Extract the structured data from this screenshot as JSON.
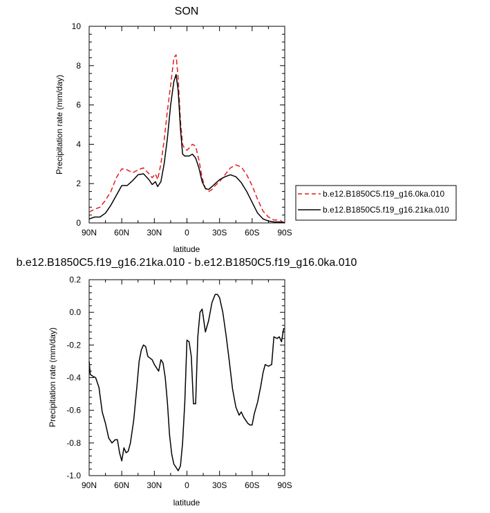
{
  "chart_data": [
    {
      "type": "line",
      "title": "SON",
      "xlabel": "latitude",
      "ylabel": "Precipitation rate (mm/day)",
      "xlim": [
        90,
        -90
      ],
      "ylim": [
        0,
        10
      ],
      "xticks": [
        90,
        60,
        30,
        0,
        -30,
        -60,
        -90
      ],
      "xtick_labels": [
        "90N",
        "60N",
        "30N",
        "0",
        "30S",
        "60S",
        "90S"
      ],
      "yticks": [
        0,
        2,
        4,
        6,
        8,
        10
      ],
      "ytick_labels": [
        "0",
        "2",
        "4",
        "6",
        "8",
        "10"
      ],
      "legend_position": "right",
      "series": [
        {
          "name": "b.e12.B1850C5.f19_g16.0ka.010",
          "color": "#e31a1c",
          "style": "dashed",
          "x": [
            90,
            85,
            80,
            75,
            70,
            65,
            60,
            55,
            50,
            45,
            40,
            35,
            32,
            29,
            27,
            24,
            21,
            18,
            15,
            12,
            10,
            8,
            6,
            4,
            2,
            0,
            -2,
            -5,
            -8,
            -11,
            -14,
            -17,
            -20,
            -23,
            -26,
            -30,
            -35,
            -40,
            -45,
            -50,
            -55,
            -60,
            -65,
            -70,
            -75,
            -80,
            -85,
            -90
          ],
          "y": [
            0.55,
            0.7,
            0.8,
            1.15,
            1.6,
            2.3,
            2.75,
            2.7,
            2.55,
            2.7,
            2.8,
            2.5,
            2.3,
            2.5,
            2.2,
            3.0,
            4.2,
            5.7,
            7.0,
            8.4,
            8.55,
            7.3,
            5.2,
            4.0,
            3.75,
            3.7,
            3.8,
            4.0,
            3.9,
            3.2,
            2.3,
            1.75,
            1.6,
            1.7,
            1.9,
            2.1,
            2.45,
            2.8,
            2.95,
            2.85,
            2.45,
            1.9,
            1.2,
            0.6,
            0.3,
            0.15,
            0.15,
            0.0
          ]
        },
        {
          "name": "b.e12.B1850C5.f19_g16.21ka.010",
          "color": "#000000",
          "style": "solid",
          "x": [
            90,
            85,
            80,
            75,
            70,
            65,
            60,
            55,
            50,
            45,
            40,
            35,
            32,
            29,
            27,
            24,
            21,
            18,
            15,
            12,
            10,
            8,
            6,
            4,
            2,
            0,
            -2,
            -5,
            -8,
            -11,
            -14,
            -17,
            -20,
            -23,
            -26,
            -30,
            -35,
            -40,
            -45,
            -50,
            -55,
            -60,
            -65,
            -70,
            -75,
            -80,
            -85,
            -90
          ],
          "y": [
            0.2,
            0.3,
            0.3,
            0.5,
            0.9,
            1.4,
            1.9,
            1.9,
            2.15,
            2.45,
            2.5,
            2.2,
            1.95,
            2.1,
            1.85,
            2.1,
            3.0,
            4.3,
            6.0,
            7.2,
            7.55,
            6.7,
            4.8,
            3.5,
            3.4,
            3.4,
            3.4,
            3.5,
            3.3,
            2.8,
            2.1,
            1.75,
            1.7,
            1.85,
            2.0,
            2.2,
            2.35,
            2.45,
            2.35,
            2.05,
            1.6,
            1.05,
            0.5,
            0.2,
            0.1,
            0.05,
            0.05,
            0.0
          ]
        }
      ]
    },
    {
      "type": "line",
      "title": "b.e12.B1850C5.f19_g16.21ka.010 - b.e12.B1850C5.f19_g16.0ka.010",
      "xlabel": "latitude",
      "ylabel": "Precipitation rate (mm/day)",
      "xlim": [
        90,
        -90
      ],
      "ylim": [
        -1.0,
        0.2
      ],
      "xticks": [
        90,
        60,
        30,
        0,
        -30,
        -60,
        -90
      ],
      "xtick_labels": [
        "90N",
        "60N",
        "30N",
        "0",
        "30S",
        "60S",
        "90S"
      ],
      "yticks": [
        -1.0,
        -0.8,
        -0.6,
        -0.4,
        -0.2,
        0.0,
        0.2
      ],
      "ytick_labels": [
        "-1.0",
        "-0.8",
        "-0.6",
        "-0.4",
        "-0.2",
        "0.0",
        "0.2"
      ],
      "series": [
        {
          "name": "",
          "color": "#000000",
          "style": "solid",
          "x": [
            90,
            89,
            87,
            84,
            81,
            78,
            75,
            72,
            69,
            66,
            64,
            62,
            60,
            58,
            56,
            54,
            52,
            49,
            46,
            44,
            42,
            40,
            38,
            36,
            34,
            32,
            30,
            28,
            26,
            24,
            22,
            20,
            18,
            16,
            14,
            12,
            10,
            8,
            6,
            4,
            2,
            0,
            -2,
            -4,
            -6,
            -8,
            -10,
            -12,
            -14,
            -17,
            -20,
            -23,
            -26,
            -28,
            -30,
            -33,
            -36,
            -39,
            -42,
            -45,
            -48,
            -50,
            -52,
            -54,
            -56,
            -58,
            -60,
            -62,
            -65,
            -68,
            -70,
            -72,
            -75,
            -78,
            -80,
            -83,
            -85,
            -87,
            -89,
            -90
          ],
          "y": [
            -0.3,
            -0.38,
            -0.39,
            -0.4,
            -0.46,
            -0.61,
            -0.68,
            -0.77,
            -0.8,
            -0.78,
            -0.78,
            -0.86,
            -0.91,
            -0.83,
            -0.86,
            -0.85,
            -0.8,
            -0.66,
            -0.45,
            -0.3,
            -0.23,
            -0.2,
            -0.21,
            -0.27,
            -0.28,
            -0.29,
            -0.32,
            -0.34,
            -0.36,
            -0.29,
            -0.31,
            -0.4,
            -0.55,
            -0.75,
            -0.87,
            -0.93,
            -0.95,
            -0.97,
            -0.94,
            -0.8,
            -0.55,
            -0.17,
            -0.18,
            -0.27,
            -0.56,
            -0.56,
            -0.15,
            -0.0,
            0.02,
            -0.12,
            -0.05,
            0.06,
            0.11,
            0.11,
            0.09,
            0.0,
            -0.14,
            -0.3,
            -0.47,
            -0.58,
            -0.63,
            -0.61,
            -0.64,
            -0.66,
            -0.68,
            -0.69,
            -0.69,
            -0.62,
            -0.55,
            -0.45,
            -0.37,
            -0.32,
            -0.33,
            -0.32,
            -0.15,
            -0.16,
            -0.15,
            -0.18,
            -0.1,
            -0.1
          ]
        }
      ]
    }
  ]
}
